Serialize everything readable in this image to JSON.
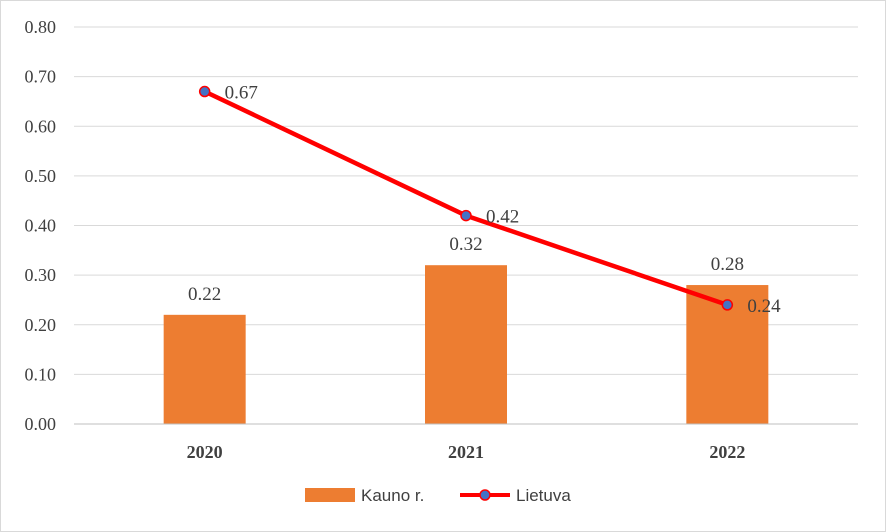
{
  "chart_data": {
    "type": "bar",
    "categories": [
      "2020",
      "2021",
      "2022"
    ],
    "ylim": [
      0,
      0.8
    ],
    "yticks": [
      "0.00",
      "0.10",
      "0.20",
      "0.30",
      "0.40",
      "0.50",
      "0.60",
      "0.70",
      "0.80"
    ],
    "grid": true,
    "legend_position": "bottom",
    "series": [
      {
        "name": "Kauno r.",
        "type": "bar",
        "color": "#ed7d31",
        "values": [
          0.22,
          0.32,
          0.28
        ],
        "labels": [
          "0.22",
          "0.32",
          "0.28"
        ]
      },
      {
        "name": "Lietuva",
        "type": "line",
        "color": "#ff0000",
        "marker_color": "#4472c4",
        "values": [
          0.67,
          0.42,
          0.24
        ],
        "labels": [
          "0.67",
          "0.42",
          "0.24"
        ]
      }
    ]
  }
}
